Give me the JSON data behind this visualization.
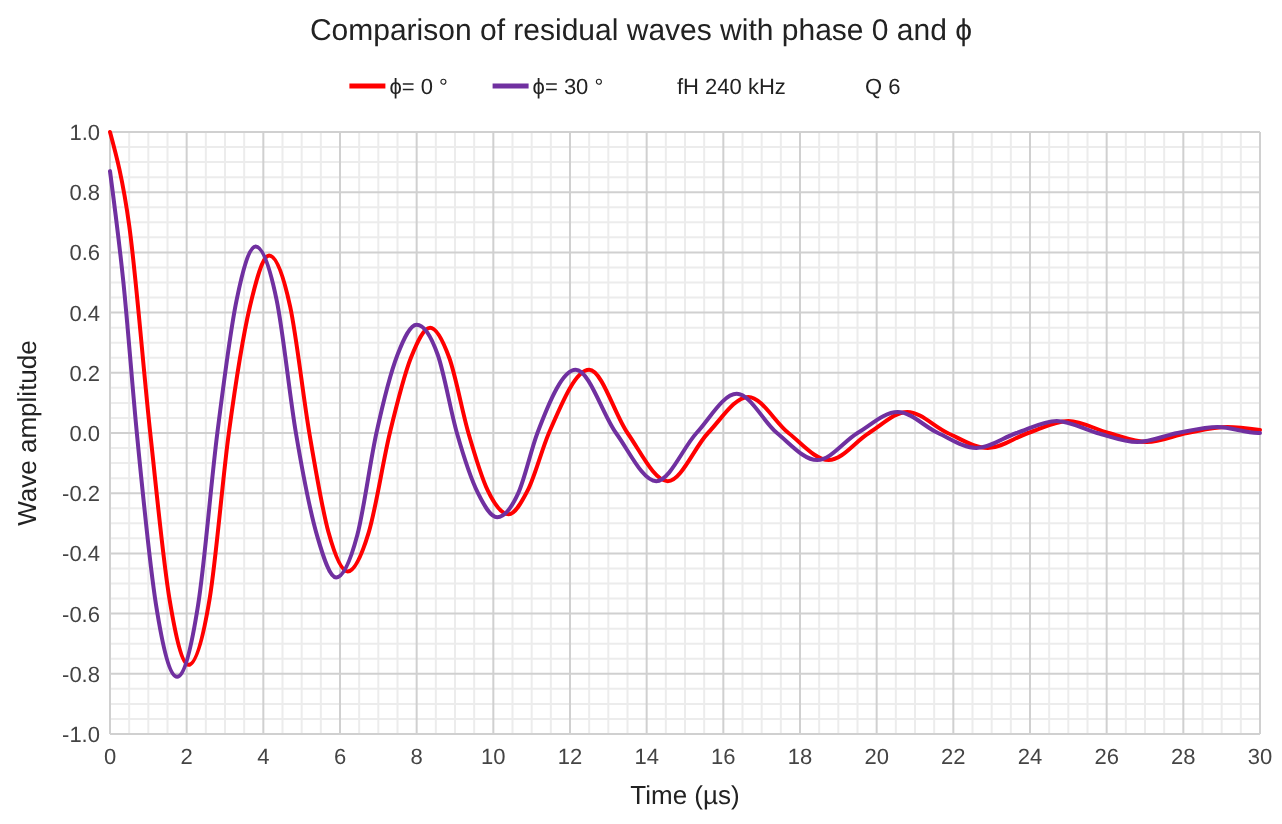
{
  "chart_data": {
    "type": "line",
    "title": "Comparison of residual waves with phase 0 and ϕ",
    "xlabel": "Time (µs)",
    "ylabel": "Wave amplitude",
    "legend": "top",
    "grid": true,
    "line_style": "solid",
    "annotations": [
      "fH 240 kHz",
      "Q 6"
    ],
    "xlim": [
      0,
      30
    ],
    "xticks": [
      0,
      2,
      4,
      6,
      8,
      10,
      12,
      14,
      16,
      18,
      20,
      22,
      24,
      26,
      28,
      30
    ],
    "ylim": [
      -1,
      1
    ],
    "yticks": [
      {
        "value": -1,
        "label": "-1.0"
      },
      {
        "value": -0.8,
        "label": "-0.8"
      },
      {
        "value": -0.6,
        "label": "-0.6"
      },
      {
        "value": -0.4,
        "label": "-0.4"
      },
      {
        "value": -0.2,
        "label": "-0.2"
      },
      {
        "value": 0,
        "label": "0.0"
      },
      {
        "value": 0.2,
        "label": "0.2"
      },
      {
        "value": 0.4,
        "label": "0.4"
      },
      {
        "value": 0.6,
        "label": "0.6"
      },
      {
        "value": 0.8,
        "label": "0.8"
      },
      {
        "value": 1,
        "label": "1.0"
      }
    ],
    "series": [
      {
        "name": "ϕ= 0 °",
        "color": "#ff0000",
        "x": [
          0,
          0.5,
          1.05,
          1.55,
          2.05,
          2.6,
          3.1,
          3.65,
          4.15,
          4.7,
          5.2,
          5.7,
          6.2,
          6.75,
          7.3,
          7.85,
          8.35,
          8.85,
          9.35,
          9.85,
          10.4,
          10.9,
          11.45,
          12.5,
          13.5,
          14.55,
          15.6,
          16.65,
          17.7,
          18.75,
          19.8,
          20.8,
          21.85,
          22.9,
          23.95,
          25,
          26.05,
          27.05,
          28.1,
          29.15,
          30
        ],
        "values": [
          1,
          0.69,
          0,
          -0.55,
          -0.77,
          -0.55,
          0,
          0.42,
          0.59,
          0.42,
          0,
          -0.33,
          -0.46,
          -0.33,
          0,
          0.25,
          0.35,
          0.25,
          0,
          -0.19,
          -0.27,
          -0.19,
          0,
          0.21,
          0,
          -0.16,
          0,
          0.12,
          0,
          -0.09,
          0,
          0.07,
          0,
          -0.05,
          0,
          0.04,
          0,
          -0.03,
          0,
          0.02,
          0.01
        ]
      },
      {
        "name": "ϕ= 30 °",
        "color": "#7030a0",
        "x": [
          0,
          0.35,
          0.7,
          1.2,
          1.75,
          2.3,
          2.8,
          3.3,
          3.8,
          4.35,
          4.85,
          5.4,
          5.9,
          6.45,
          6.95,
          7.5,
          8,
          8.55,
          9.05,
          9.6,
          10.1,
          10.65,
          11.15,
          12.15,
          13.2,
          14.25,
          15.3,
          16.35,
          17.4,
          18.45,
          19.5,
          20.55,
          21.6,
          22.6,
          23.65,
          24.7,
          25.75,
          26.8,
          27.85,
          28.9,
          29.95,
          30
        ],
        "values": [
          0.87,
          0.5,
          0,
          -0.57,
          -0.81,
          -0.57,
          0,
          0.44,
          0.62,
          0.44,
          0,
          -0.34,
          -0.48,
          -0.34,
          0,
          0.26,
          0.36,
          0.26,
          0,
          -0.2,
          -0.28,
          -0.2,
          0,
          0.21,
          0,
          -0.16,
          0,
          0.13,
          0,
          -0.09,
          0,
          0.07,
          0,
          -0.05,
          0,
          0.04,
          0,
          -0.03,
          0,
          0.02,
          0,
          0
        ]
      }
    ]
  }
}
